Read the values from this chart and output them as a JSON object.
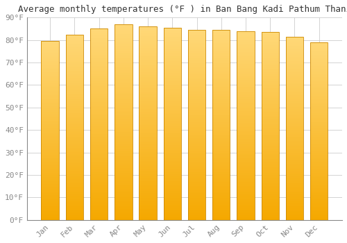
{
  "title": "Average monthly temperatures (°F ) in Ban Bang Kadi Pathum Thani",
  "months": [
    "Jan",
    "Feb",
    "Mar",
    "Apr",
    "May",
    "Jun",
    "Jul",
    "Aug",
    "Sep",
    "Oct",
    "Nov",
    "Dec"
  ],
  "values": [
    79.5,
    82.5,
    85.0,
    87.0,
    86.0,
    85.5,
    84.5,
    84.5,
    84.0,
    83.5,
    81.5,
    79.0
  ],
  "ylim": [
    0,
    90
  ],
  "yticks": [
    0,
    10,
    20,
    30,
    40,
    50,
    60,
    70,
    80,
    90
  ],
  "ytick_labels": [
    "0°F",
    "10°F",
    "20°F",
    "30°F",
    "40°F",
    "50°F",
    "60°F",
    "70°F",
    "80°F",
    "90°F"
  ],
  "bar_color_bottom": "#F5A800",
  "bar_color_top": "#FFD878",
  "bar_edge_color": "#CC8800",
  "background_color": "#FFFFFF",
  "plot_bg_color": "#FFFFFF",
  "grid_color": "#CCCCCC",
  "title_fontsize": 9,
  "tick_fontsize": 8,
  "font_family": "monospace",
  "tick_color": "#888888",
  "spine_color": "#888888"
}
